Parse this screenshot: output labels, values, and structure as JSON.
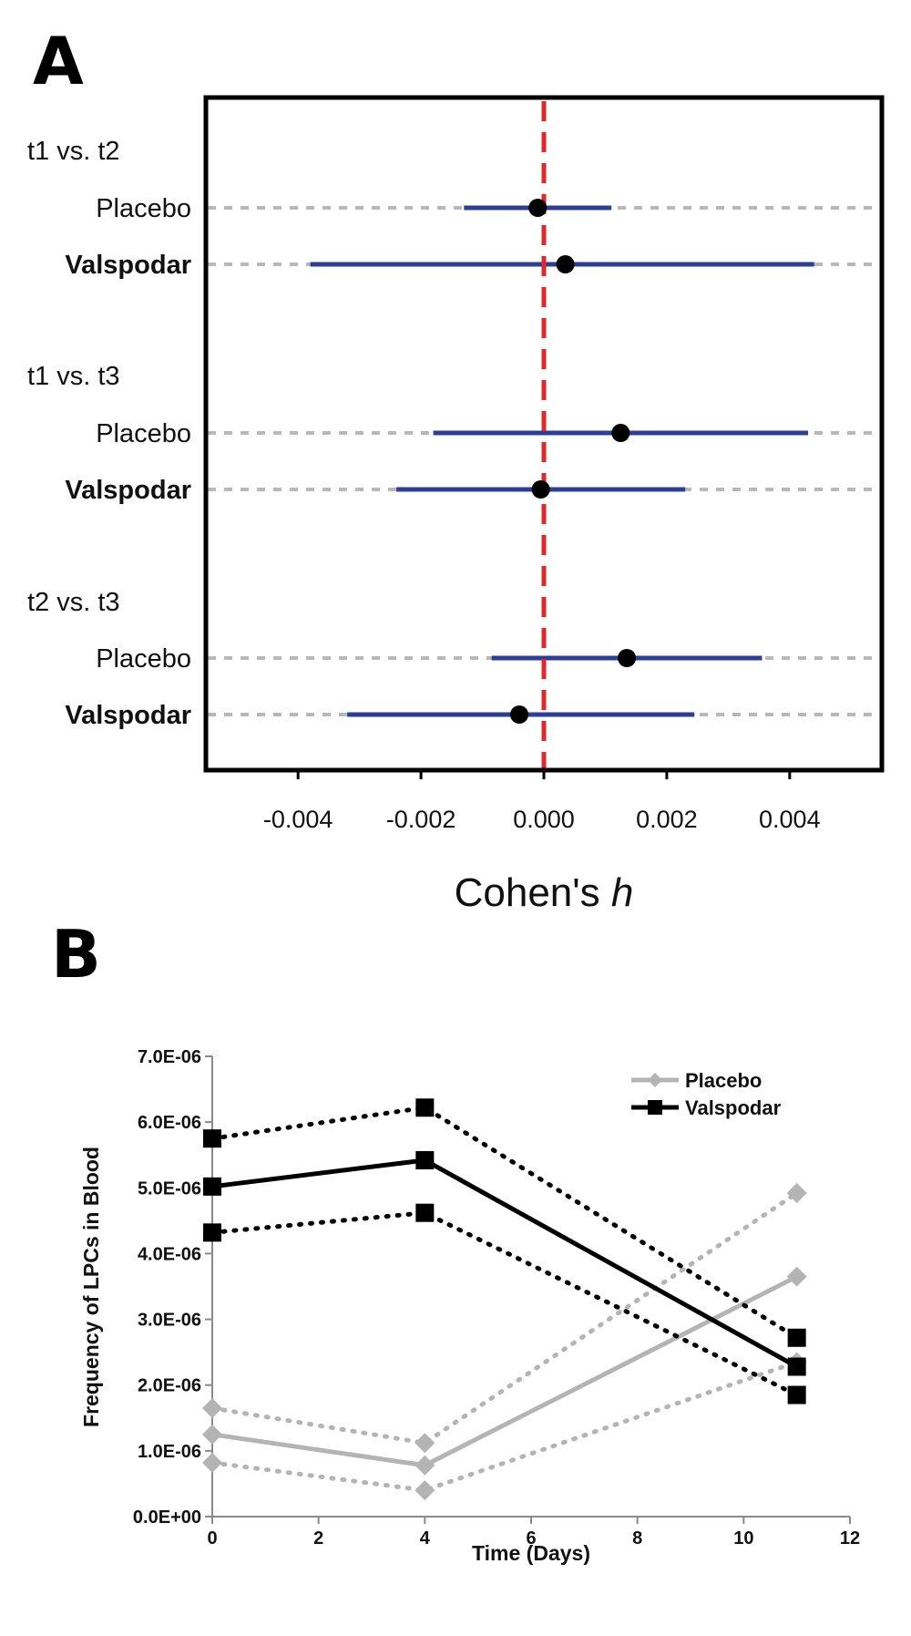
{
  "panels": {
    "a_letter": "A",
    "b_letter": "B"
  },
  "chart_data": [
    {
      "type": "forest",
      "panel": "A",
      "xlabel": "Cohen's ",
      "xlabel_italic": "h",
      "xlim": [
        -0.0055,
        0.0055
      ],
      "x_ticks": [
        -0.004,
        -0.002,
        0.0,
        0.002,
        0.004
      ],
      "x_tick_labels": [
        "-0.004",
        "-0.002",
        "0.000",
        "0.002",
        "0.004"
      ],
      "reference_line": 0.0,
      "colors": {
        "ci": "#2d3e96",
        "point": "#000000",
        "reference": "#e0282a",
        "guide": "#b8b8b8"
      },
      "groups": [
        {
          "label": "t1 vs. t2",
          "rows": [
            {
              "label": "Placebo",
              "bold": false,
              "estimate": -0.0001,
              "lower": -0.0013,
              "upper": 0.0011
            },
            {
              "label": "Valspodar",
              "bold": true,
              "estimate": 0.00035,
              "lower": -0.0038,
              "upper": 0.0044
            }
          ]
        },
        {
          "label": "t1 vs. t3",
          "rows": [
            {
              "label": "Placebo",
              "bold": false,
              "estimate": 0.00125,
              "lower": -0.0018,
              "upper": 0.0043
            },
            {
              "label": "Valspodar",
              "bold": true,
              "estimate": -5e-05,
              "lower": -0.0024,
              "upper": 0.0023
            }
          ]
        },
        {
          "label": "t2 vs. t3",
          "rows": [
            {
              "label": "Placebo",
              "bold": false,
              "estimate": 0.00135,
              "lower": -0.00085,
              "upper": 0.00355
            },
            {
              "label": "Valspodar",
              "bold": true,
              "estimate": -0.0004,
              "lower": -0.0032,
              "upper": 0.00245
            }
          ]
        }
      ]
    },
    {
      "type": "line",
      "panel": "B",
      "xlabel": "Time (Days)",
      "ylabel": "Frequency of LPCs in Blood",
      "xlim": [
        0,
        12
      ],
      "ylim": [
        0,
        7e-06
      ],
      "x_ticks": [
        0,
        2,
        4,
        6,
        8,
        10,
        12
      ],
      "x_tick_labels": [
        "0",
        "2",
        "4",
        "6",
        "8",
        "10",
        "12"
      ],
      "y_ticks": [
        0,
        1e-06,
        2e-06,
        3e-06,
        4e-06,
        5e-06,
        6e-06,
        7e-06
      ],
      "y_tick_labels": [
        "0.0E+00",
        "1.0E-06",
        "2.0E-06",
        "3.0E-06",
        "4.0E-06",
        "5.0E-06",
        "6.0E-06",
        "7.0E-06"
      ],
      "legend_position": "top-right",
      "x": [
        0,
        4,
        11
      ],
      "series": [
        {
          "name": "Placebo",
          "color": "#b4b4b4",
          "marker": "diamond",
          "values": [
            1.25e-06,
            7.8e-07,
            3.65e-06
          ],
          "upper": [
            1.65e-06,
            1.12e-06,
            4.92e-06
          ],
          "lower": [
            8.2e-07,
            4e-07,
            2.35e-06
          ]
        },
        {
          "name": "Valspodar",
          "color": "#000000",
          "marker": "square",
          "values": [
            5.02e-06,
            5.42e-06,
            2.28e-06
          ],
          "upper": [
            5.75e-06,
            6.22e-06,
            2.72e-06
          ],
          "lower": [
            4.32e-06,
            4.62e-06,
            1.85e-06
          ]
        }
      ]
    }
  ]
}
